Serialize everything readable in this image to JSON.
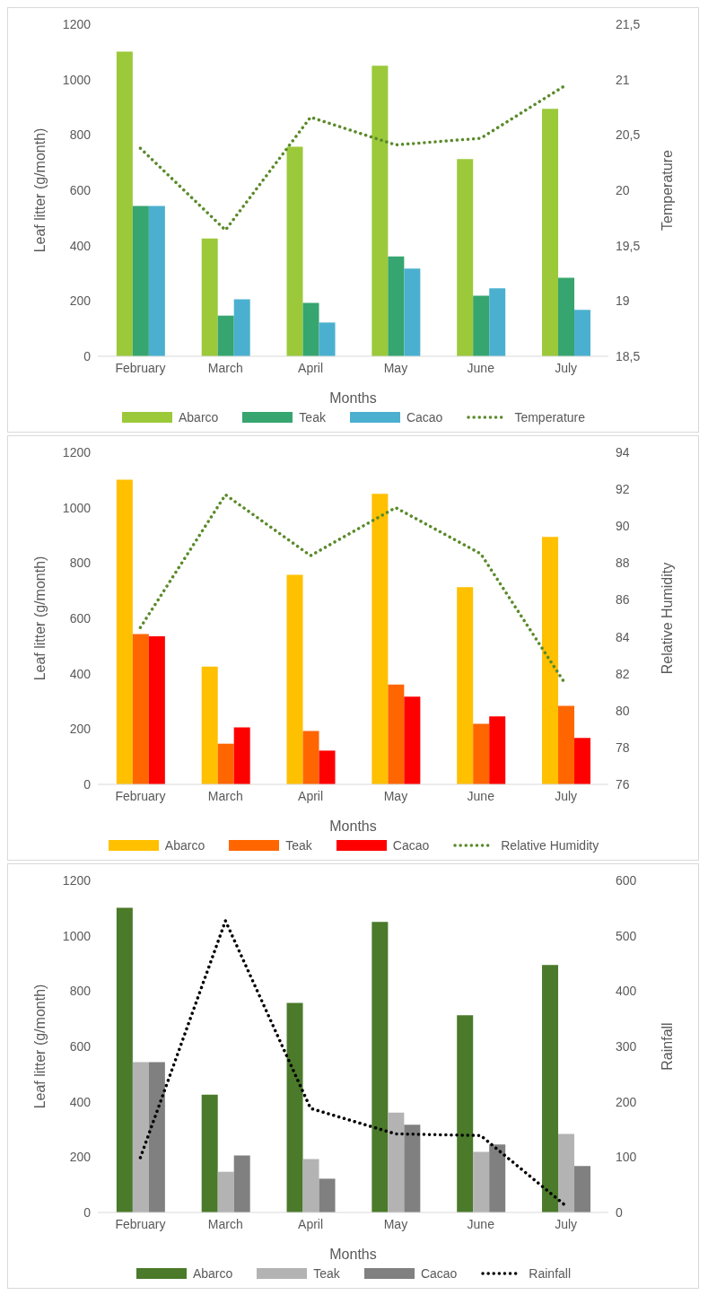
{
  "chart_data": [
    {
      "type": "bar",
      "categories": [
        "February",
        "March",
        "April",
        "May",
        "June",
        "July"
      ],
      "xlabel": "Months",
      "ylabel": "Leaf litter (g/month)",
      "y2label": "Temperature",
      "ylim": [
        0,
        1200
      ],
      "yticks": [
        0,
        200,
        400,
        600,
        800,
        1000,
        1200
      ],
      "y2lim": [
        18.5,
        21.5
      ],
      "y2ticks": [
        {
          "value": 18.5,
          "label": "18,5"
        },
        19,
        {
          "value": 19.5,
          "label": "19,5"
        },
        20,
        {
          "value": 20.5,
          "label": "20,5"
        },
        21,
        {
          "value": 21.5,
          "label": "21,5"
        }
      ],
      "grid": false,
      "legend": "bottom",
      "marker": "none",
      "series": [
        {
          "name": "Abarco",
          "color": "#9bc93a",
          "values": [
            1101,
            426,
            757,
            1050,
            713,
            894
          ]
        },
        {
          "name": "Teak",
          "color": "#36a56f",
          "values": [
            543,
            147,
            193,
            361,
            219,
            284
          ]
        },
        {
          "name": "Cacao",
          "color": "#4bb0cf",
          "values": [
            543,
            206,
            122,
            317,
            246,
            168
          ]
        },
        {
          "name": "Temperature",
          "type": "line",
          "axis": "y2",
          "color": "#5a8a2a",
          "line_style": "dotted",
          "values": [
            20.38,
            19.64,
            20.66,
            20.41,
            20.47,
            20.95
          ]
        }
      ]
    },
    {
      "type": "bar",
      "categories": [
        "February",
        "March",
        "April",
        "May",
        "June",
        "July"
      ],
      "xlabel": "Months",
      "ylabel": "Leaf litter (g/month)",
      "y2label": "Relative Humidity",
      "ylim": [
        0,
        1200
      ],
      "yticks": [
        0,
        200,
        400,
        600,
        800,
        1000,
        1200
      ],
      "y2lim": [
        76,
        94
      ],
      "y2ticks": [
        76,
        78,
        80,
        82,
        84,
        86,
        88,
        90,
        92,
        94
      ],
      "grid": false,
      "legend": "bottom",
      "marker": "none",
      "series": [
        {
          "name": "Abarco",
          "color": "#ffc000",
          "values": [
            1101,
            426,
            757,
            1050,
            713,
            894
          ]
        },
        {
          "name": "Teak",
          "color": "#ff6600",
          "values": [
            543,
            147,
            193,
            361,
            219,
            284
          ]
        },
        {
          "name": "Cacao",
          "color": "#ff0000",
          "values": [
            535,
            206,
            122,
            317,
            246,
            168
          ]
        },
        {
          "name": "Relative Humidity",
          "type": "line",
          "axis": "y2",
          "color": "#5a8a2a",
          "line_style": "dotted",
          "values": [
            84.5,
            91.7,
            88.4,
            91.0,
            88.5,
            81.4
          ]
        }
      ]
    },
    {
      "type": "bar",
      "categories": [
        "February",
        "March",
        "April",
        "May",
        "June",
        "July"
      ],
      "xlabel": "Months",
      "ylabel": "Leaf litter (g/month)",
      "y2label": "Rainfall",
      "ylim": [
        0,
        1200
      ],
      "yticks": [
        0,
        200,
        400,
        600,
        800,
        1000,
        1200
      ],
      "y2lim": [
        0,
        600
      ],
      "y2ticks": [
        0,
        100,
        200,
        300,
        400,
        500,
        600
      ],
      "grid": false,
      "legend": "bottom",
      "marker": "none",
      "series": [
        {
          "name": "Abarco",
          "color": "#4a7a2a",
          "values": [
            1101,
            426,
            757,
            1050,
            713,
            894
          ]
        },
        {
          "name": "Teak",
          "color": "#b3b3b3",
          "values": [
            543,
            147,
            193,
            361,
            219,
            284
          ]
        },
        {
          "name": "Cacao",
          "color": "#808080",
          "values": [
            543,
            206,
            122,
            317,
            246,
            168
          ]
        },
        {
          "name": "Rainfall",
          "type": "line",
          "axis": "y2",
          "color": "#000000",
          "line_style": "dotted",
          "values": [
            99,
            527,
            188,
            142,
            139,
            12
          ]
        }
      ]
    }
  ]
}
